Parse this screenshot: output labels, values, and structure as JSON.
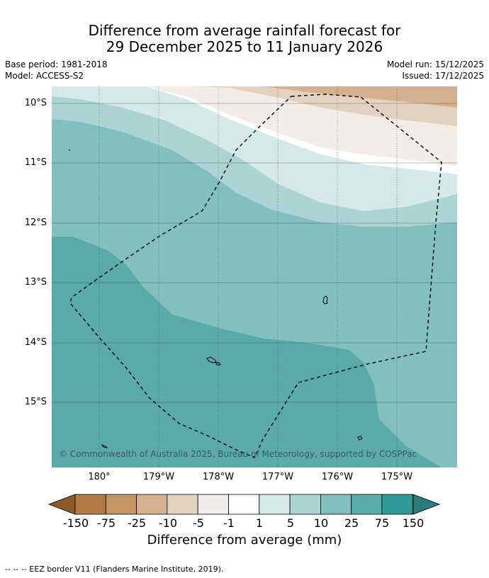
{
  "title": {
    "line1": "Difference from average rainfall forecast for",
    "line2": "29 December 2025 to 11 January 2026"
  },
  "meta": {
    "base_period": "Base period: 1981-2018",
    "model": "Model: ACCESS-S2",
    "model_run": "Model run: 15/12/2025",
    "issued": "Issued: 17/12/2025"
  },
  "map": {
    "lat_labels": [
      "10°S",
      "11°S",
      "12°S",
      "13°S",
      "14°S",
      "15°S"
    ],
    "lon_labels": [
      "180°",
      "179°W",
      "178°W",
      "177°W",
      "176°W",
      "175°W"
    ],
    "copyright": "© Commonwealth of Australia 2025, Bureau of Meteorology, supported by COSPPac"
  },
  "colorbar": {
    "labels": [
      "-150",
      "-75",
      "-25",
      "-10",
      "-5",
      "-1",
      "1",
      "5",
      "10",
      "25",
      "75",
      "150"
    ],
    "colors": [
      "#8e5a28",
      "#b07a42",
      "#c29466",
      "#d4b08f",
      "#e4d2c1",
      "#f2ede8",
      "#ffffff",
      "#d5e9e9",
      "#acd4d5",
      "#83bfbf",
      "#5aaaaa",
      "#309a98",
      "#2a7d7a"
    ],
    "title": "Difference from average (mm)"
  },
  "footer": "--  --  -- EEZ border V11 (Flanders Marine Institute, 2019)."
}
